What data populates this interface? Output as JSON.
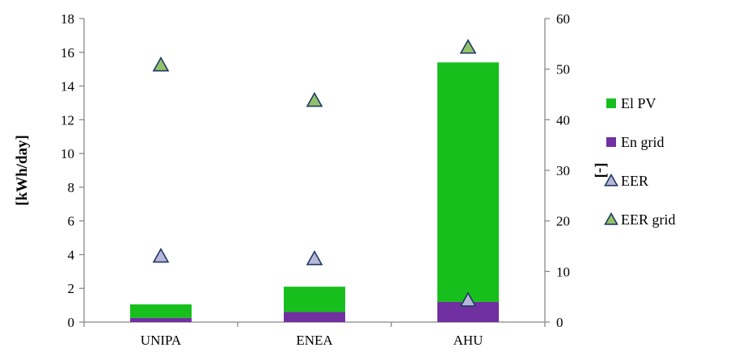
{
  "chart_data": {
    "type": "bar",
    "stacked": true,
    "categories": [
      "UNIPA",
      "ENEA",
      "AHU"
    ],
    "series": [
      {
        "name": "En grid",
        "axis": "left",
        "kind": "bar",
        "color": "#7030a0",
        "values": [
          0.25,
          0.6,
          1.2
        ]
      },
      {
        "name": "El PV",
        "axis": "left",
        "kind": "bar",
        "color": "#17bf1d",
        "values": [
          0.8,
          1.5,
          14.2
        ]
      },
      {
        "name": "EER",
        "axis": "right",
        "kind": "marker",
        "color": "#b7b7d9",
        "values": [
          13.0,
          12.5,
          4.3
        ]
      },
      {
        "name": "EER grid",
        "axis": "right",
        "kind": "marker",
        "color": "#92c36a",
        "values": [
          50.8,
          43.8,
          54.3
        ]
      }
    ],
    "ylabel": "[kWh/day]",
    "y2label": "[-]",
    "ylim": [
      0,
      18
    ],
    "y2lim": [
      0,
      60
    ],
    "yticks": [
      0,
      2,
      4,
      6,
      8,
      10,
      12,
      14,
      16,
      18
    ],
    "y2ticks": [
      0,
      10,
      20,
      30,
      40,
      50,
      60
    ],
    "legend": [
      "El PV",
      "En grid",
      "EER",
      "EER grid"
    ],
    "legend_position": "right",
    "grid": false
  }
}
